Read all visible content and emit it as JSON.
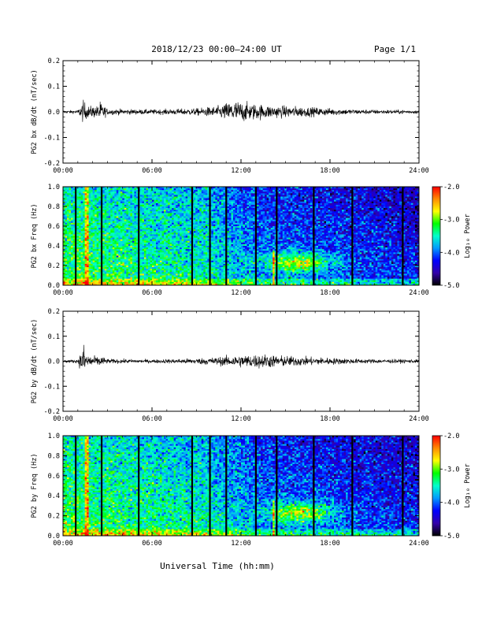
{
  "header": {
    "date_range": "2018/12/23  00:00–24:00 UT",
    "page": "Page 1/1"
  },
  "x_axis_title": "Universal Time (hh:mm)",
  "colorbar": {
    "label": "Log₁₀ Power",
    "ticks": [
      "-2.0",
      "-3.0",
      "-4.0",
      "-5.0"
    ],
    "colors": [
      "#ff0000",
      "#ff8c00",
      "#ffff00",
      "#00ff00",
      "#00ffcc",
      "#0099ff",
      "#0000ff",
      "#3300aa",
      "#000000"
    ]
  },
  "chart_data": [
    {
      "type": "line",
      "title": "",
      "ylabel": "PG2 bx dB/dt (nT/sec)",
      "xlabel": "",
      "xlim": [
        0,
        24
      ],
      "ylim": [
        -0.2,
        0.2
      ],
      "x_tick_labels": [
        "00:00",
        "06:00",
        "12:00",
        "18:00",
        "24:00"
      ],
      "y_tick_labels": [
        "0.2",
        "0.1",
        "0.0",
        "-0.1",
        "-0.2"
      ],
      "envelope": {
        "x_hours": [
          0,
          1,
          1.4,
          1.6,
          2.3,
          2.5,
          3,
          6,
          9,
          10.5,
          11.5,
          12.5,
          14,
          16,
          18,
          20,
          22,
          24
        ],
        "amplitude": [
          0.005,
          0.006,
          0.04,
          0.02,
          0.02,
          0.035,
          0.01,
          0.008,
          0.012,
          0.02,
          0.04,
          0.03,
          0.022,
          0.018,
          0.012,
          0.008,
          0.007,
          0.006
        ]
      }
    },
    {
      "type": "heatmap",
      "title": "",
      "ylabel": "PG2 bx Freq (Hz)",
      "xlabel": "",
      "xlim": [
        0,
        24
      ],
      "ylim": [
        0,
        1.0
      ],
      "x_tick_labels": [
        "00:00",
        "06:00",
        "12:00",
        "18:00",
        "24:00"
      ],
      "y_tick_labels": [
        "1.0",
        "0.8",
        "0.6",
        "0.4",
        "0.2",
        "0.0"
      ],
      "color_range": [
        -5.0,
        -2.0
      ],
      "gap_lines_hours": [
        0.85,
        2.6,
        5.1,
        8.7,
        9.9,
        11.0,
        13.0,
        14.4,
        16.9,
        19.5,
        22.9
      ]
    },
    {
      "type": "line",
      "title": "",
      "ylabel": "PG2 by dB/dt (nT/sec)",
      "xlabel": "",
      "xlim": [
        0,
        24
      ],
      "ylim": [
        -0.2,
        0.2
      ],
      "x_tick_labels": [
        "00:00",
        "06:00",
        "12:00",
        "18:00",
        "24:00"
      ],
      "y_tick_labels": [
        "0.2",
        "0.1",
        "0.0",
        "-0.1",
        "-0.2"
      ],
      "envelope": {
        "x_hours": [
          0,
          1,
          1.4,
          1.6,
          2.3,
          2.5,
          3,
          6,
          9,
          10.5,
          11.5,
          13.5,
          14.5,
          16,
          18,
          20,
          22,
          24
        ],
        "amplitude": [
          0.005,
          0.006,
          0.06,
          0.025,
          0.015,
          0.02,
          0.008,
          0.006,
          0.01,
          0.015,
          0.02,
          0.025,
          0.02,
          0.016,
          0.012,
          0.008,
          0.007,
          0.006
        ]
      }
    },
    {
      "type": "heatmap",
      "title": "",
      "ylabel": "PG2 by Freq (Hz)",
      "xlabel": "",
      "xlim": [
        0,
        24
      ],
      "ylim": [
        0,
        1.0
      ],
      "x_tick_labels": [
        "00:00",
        "06:00",
        "12:00",
        "18:00",
        "24:00"
      ],
      "y_tick_labels": [
        "1.0",
        "0.8",
        "0.6",
        "0.4",
        "0.2",
        "0.0"
      ],
      "color_range": [
        -5.0,
        -2.0
      ],
      "gap_lines_hours": [
        0.85,
        2.6,
        5.1,
        8.7,
        9.9,
        11.0,
        13.0,
        14.4,
        16.9,
        19.5,
        22.9
      ]
    }
  ]
}
